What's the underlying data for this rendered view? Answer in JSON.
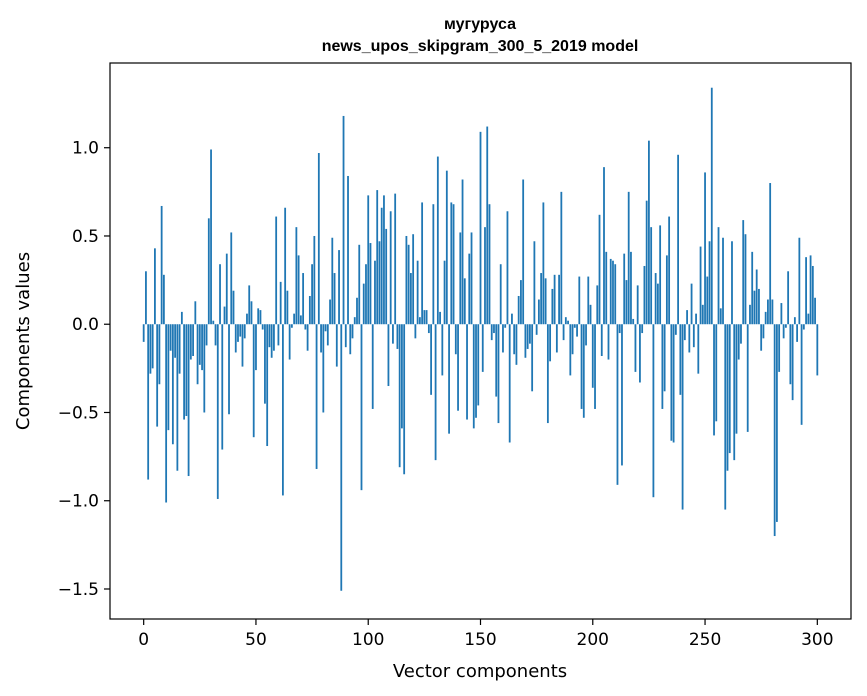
{
  "chart_data": {
    "type": "bar",
    "title": "мугуруса",
    "subtitle": "news_upos_skipgram_300_5_2019 model",
    "xlabel": "Vector components",
    "ylabel": "Components values",
    "xlim": [
      -15,
      315
    ],
    "ylim": [
      -1.67,
      1.48
    ],
    "xticks": [
      0,
      50,
      100,
      150,
      200,
      250,
      300
    ],
    "xtick_labels": [
      "0",
      "50",
      "100",
      "150",
      "200",
      "250",
      "300"
    ],
    "yticks": [
      -1.5,
      -1.0,
      -0.5,
      0.0,
      0.5,
      1.0
    ],
    "ytick_labels": [
      "−1.5",
      "−1.0",
      "−0.5",
      "0.0",
      "0.5",
      "1.0"
    ],
    "bar_color": "#1f77b4",
    "grid": false,
    "values": [
      -0.1,
      0.3,
      -0.88,
      -0.28,
      -0.25,
      0.43,
      -0.58,
      -0.34,
      0.67,
      0.28,
      -1.01,
      -0.6,
      -0.15,
      -0.68,
      -0.19,
      -0.83,
      -0.28,
      0.07,
      -0.54,
      -0.52,
      -0.86,
      -0.2,
      -0.18,
      0.13,
      -0.34,
      -0.23,
      -0.26,
      -0.5,
      -0.12,
      0.6,
      0.99,
      0.02,
      -0.12,
      -0.99,
      0.34,
      -0.71,
      0.1,
      0.4,
      -0.51,
      0.52,
      0.19,
      -0.16,
      -0.1,
      -0.07,
      -0.24,
      -0.08,
      0.06,
      0.22,
      0.13,
      -0.64,
      -0.26,
      0.09,
      0.08,
      -0.03,
      -0.45,
      -0.69,
      -0.13,
      -0.19,
      -0.15,
      0.61,
      -0.12,
      0.24,
      -0.97,
      0.66,
      0.19,
      -0.2,
      -0.02,
      0.06,
      0.55,
      0.39,
      0.05,
      0.29,
      -0.03,
      -0.15,
      0.16,
      0.34,
      0.5,
      -0.82,
      0.97,
      -0.16,
      -0.5,
      -0.04,
      -0.12,
      0.14,
      0.49,
      0.29,
      -0.24,
      0.42,
      -1.51,
      1.18,
      -0.13,
      0.84,
      -0.17,
      -0.08,
      0.04,
      0.15,
      0.45,
      -0.94,
      0.23,
      0.34,
      0.73,
      0.46,
      -0.48,
      0.36,
      0.76,
      0.47,
      0.66,
      0.73,
      0.54,
      -0.35,
      0.64,
      -0.11,
      0.74,
      -0.14,
      -0.81,
      -0.59,
      -0.85,
      0.5,
      0.45,
      0.29,
      0.51,
      -0.08,
      0.36,
      0.04,
      0.69,
      0.08,
      0.08,
      -0.05,
      -0.4,
      0.68,
      -0.77,
      0.95,
      0.07,
      -0.29,
      0.36,
      0.87,
      -0.62,
      0.69,
      0.68,
      -0.17,
      -0.49,
      0.52,
      0.82,
      0.26,
      -0.54,
      0.4,
      0.52,
      -0.59,
      -0.53,
      -0.46,
      1.09,
      -0.27,
      0.55,
      1.12,
      0.68,
      -0.09,
      -0.05,
      -0.41,
      -0.56,
      0.34,
      -0.16,
      -0.02,
      0.64,
      -0.67,
      0.06,
      -0.17,
      -0.23,
      0.16,
      0.25,
      0.82,
      -0.19,
      -0.14,
      -0.11,
      -0.38,
      0.47,
      -0.06,
      0.14,
      0.29,
      0.69,
      0.26,
      -0.56,
      -0.21,
      0.2,
      0.28,
      -0.16,
      0.28,
      0.75,
      -0.09,
      0.04,
      0.02,
      -0.29,
      -0.17,
      -0.02,
      -0.07,
      0.27,
      -0.48,
      -0.53,
      -0.12,
      0.27,
      0.11,
      -0.36,
      -0.48,
      0.22,
      0.62,
      -0.18,
      0.89,
      0.41,
      -0.2,
      0.37,
      0.36,
      0.34,
      -0.91,
      -0.05,
      -0.8,
      0.4,
      0.25,
      0.75,
      0.41,
      0.03,
      -0.27,
      0.22,
      -0.33,
      -0.05,
      0.33,
      0.7,
      1.04,
      0.55,
      -0.98,
      0.29,
      0.23,
      0.56,
      -0.48,
      -0.38,
      0.39,
      0.61,
      -0.66,
      -0.67,
      -0.06,
      0.96,
      -0.4,
      -1.05,
      -0.09,
      0.08,
      -0.16,
      0.23,
      -0.13,
      0.06,
      -0.28,
      0.44,
      0.11,
      0.86,
      0.27,
      0.47,
      1.34,
      -0.63,
      -0.55,
      0.55,
      0.09,
      0.49,
      -1.05,
      -0.83,
      -0.73,
      0.47,
      -0.77,
      -0.62,
      -0.2,
      -0.11,
      0.59,
      0.51,
      -0.61,
      0.11,
      0.41,
      0.19,
      0.31,
      0.2,
      -0.15,
      -0.08,
      0.07,
      0.14,
      0.8,
      0.14,
      -1.2,
      -1.12,
      -0.27,
      0.12,
      -0.08,
      -0.02,
      0.3,
      -0.34,
      -0.43,
      0.04,
      -0.1,
      0.49,
      -0.57,
      -0.03,
      0.38,
      0.06,
      0.39,
      0.33,
      0.15,
      -0.29
    ]
  }
}
